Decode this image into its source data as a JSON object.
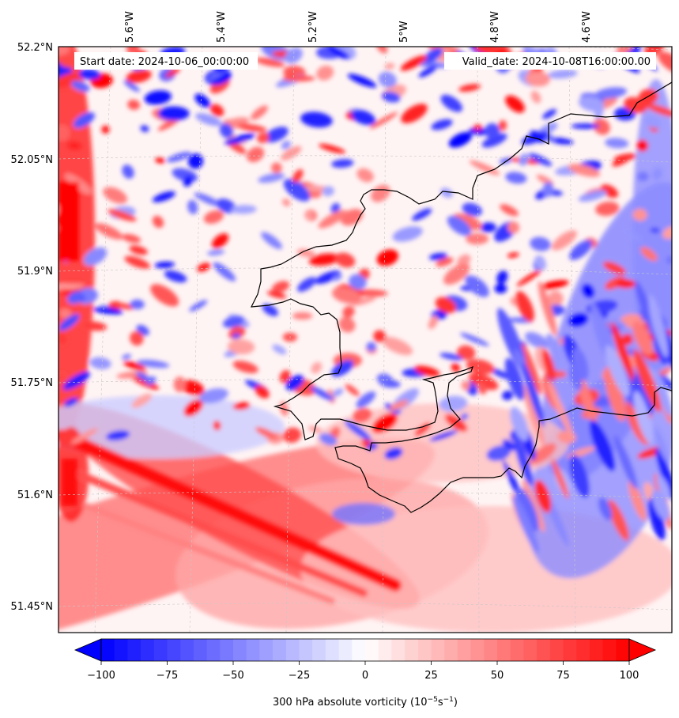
{
  "map": {
    "start_date": "Start date: 2024-10-06_00:00:00",
    "valid_date": "Valid_date: 2024-10-08T16:00:00.00",
    "lon_ticks": [
      "5.6°W",
      "5.4°W",
      "5.2°W",
      "5°W",
      "4.8°W",
      "4.6°W"
    ],
    "lat_ticks": [
      "52.2°N",
      "52.05°N",
      "51.9°N",
      "51.75°N",
      "51.6°N",
      "51.45°N"
    ],
    "variable": "300 hPa absolute vorticity",
    "units_base": "(10",
    "units_exp1": "−5",
    "units_mid": "s",
    "units_exp2": "−1",
    "units_end": ")"
  },
  "colorbar": {
    "min": -100,
    "max": 100,
    "ticks": [
      "−100",
      "−75",
      "−50",
      "−25",
      "0",
      "25",
      "50",
      "75",
      "100"
    ],
    "colormap": "bwr",
    "color_low": "#0000ff",
    "color_mid": "#ffffff",
    "color_high": "#ff0000",
    "extend": "both"
  },
  "coastline_color": "#000000",
  "grid_color": "#c8c8c8"
}
